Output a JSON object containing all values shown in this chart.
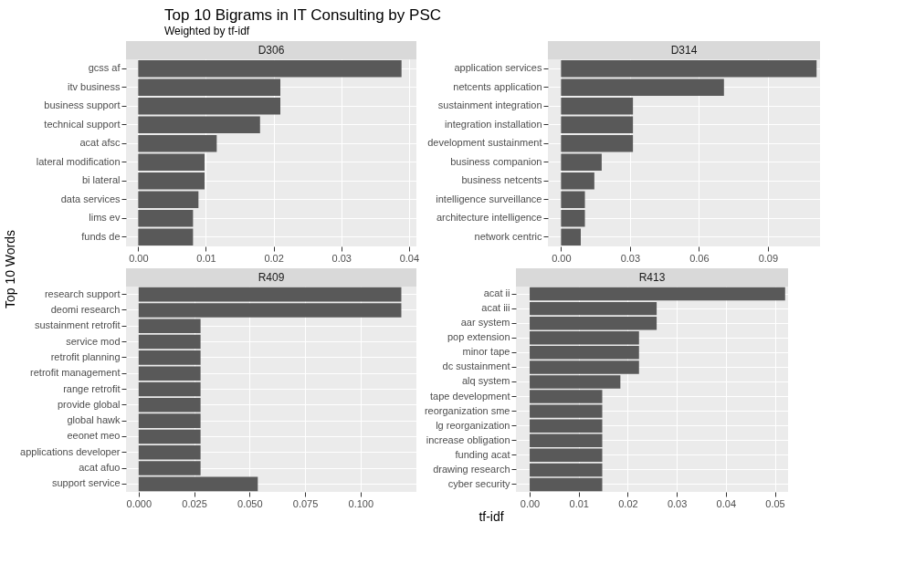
{
  "chart_data": [
    {
      "type": "bar",
      "orientation": "horizontal",
      "title": "D306",
      "annotations": [
        "Top 10 Bigrams in IT Consulting by PSC",
        "Weighted by tf-idf"
      ],
      "ylabel": "Top 10 Words",
      "grid": true,
      "color": "#595959",
      "categories": [
        "gcss af",
        "itv business",
        "business support",
        "technical support",
        "acat afsc",
        "lateral modification",
        "bi lateral",
        "data services",
        "lims ev",
        "funds de"
      ],
      "values": [
        0.0389,
        0.021,
        0.021,
        0.018,
        0.0116,
        0.0098,
        0.0098,
        0.0089,
        0.0081,
        0.0081
      ],
      "xlim": [
        -0.0018,
        0.0411
      ],
      "xticks": [
        {
          "value": 0,
          "label": "0.00"
        },
        0.01,
        0.02,
        0.03,
        0.04
      ]
    },
    {
      "type": "bar",
      "orientation": "horizontal",
      "title": "D314",
      "grid": true,
      "color": "#595959",
      "categories": [
        "application services",
        "netcents application",
        "sustainment integration",
        "integration installation",
        "development sustainment",
        "business companion",
        "business netcents",
        "intelligence surveillance",
        "architecture intelligence",
        "network centric"
      ],
      "values": [
        0.1112,
        0.0709,
        0.0313,
        0.0313,
        0.0313,
        0.0177,
        0.0145,
        0.0104,
        0.0104,
        0.0086
      ],
      "xlim": [
        -0.0057,
        0.1127
      ],
      "xticks": [
        {
          "value": 0,
          "label": "0.00"
        },
        0.03,
        0.06,
        0.09
      ]
    },
    {
      "type": "bar",
      "orientation": "horizontal",
      "title": "R409",
      "grid": true,
      "color": "#595959",
      "categories": [
        "research support",
        "deomi research",
        "sustainment retrofit",
        "service mod",
        "retrofit planning",
        "retrofit management",
        "range retrofit",
        "provide global",
        "global hawk",
        "eeonet meo",
        "applications developer",
        "acat afuo",
        "support service"
      ],
      "values": [
        0.1184,
        0.1184,
        0.0279,
        0.0279,
        0.0279,
        0.0279,
        0.0279,
        0.0279,
        0.0279,
        0.0279,
        0.0279,
        0.0279,
        0.0537
      ],
      "xlim": [
        -0.0057,
        0.1252
      ],
      "xticks": [
        {
          "value": 0,
          "label": "0.000"
        },
        0.025,
        {
          "value": 0.05,
          "label": "0.050"
        },
        0.075,
        {
          "value": 0.1,
          "label": "0.100"
        }
      ]
    },
    {
      "type": "bar",
      "orientation": "horizontal",
      "title": "R413",
      "xlabel": "tf-idf",
      "grid": true,
      "color": "#595959",
      "categories": [
        "acat ii",
        "acat iii",
        "aar system",
        "pop extension",
        "minor tape",
        "dc sustainment",
        "alq system",
        "tape development",
        "reorganization sme",
        "lg reorganization",
        "increase obligation",
        "funding acat",
        "drawing research",
        "cyber security"
      ],
      "values": [
        0.0521,
        0.0259,
        0.0259,
        0.0223,
        0.0223,
        0.0223,
        0.0185,
        0.0148,
        0.0148,
        0.0148,
        0.0148,
        0.0148,
        0.0148,
        0.0148
      ],
      "xlim": [
        -0.0028,
        0.0527
      ],
      "xticks": [
        {
          "value": 0,
          "label": "0.00"
        },
        0.01,
        0.02,
        0.03,
        0.04,
        0.05
      ]
    }
  ]
}
